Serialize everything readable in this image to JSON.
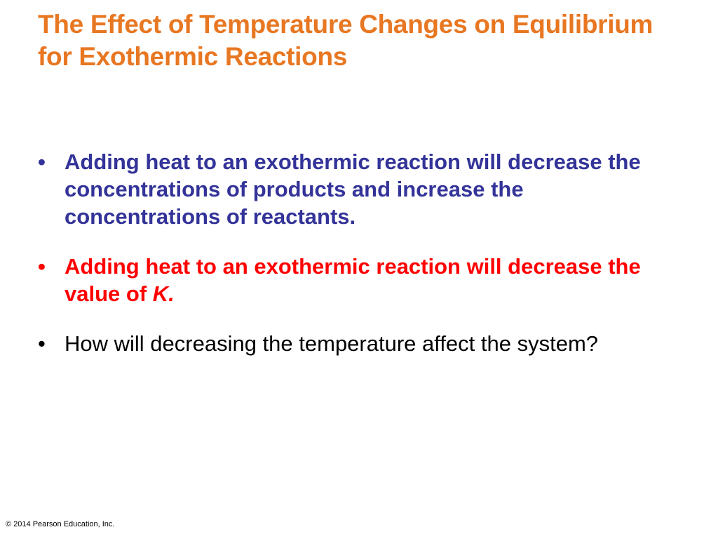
{
  "slide": {
    "title": "The Effect of Temperature Changes on Equilibrium for Exothermic Reactions",
    "bullet_symbol": "•",
    "bullets": [
      {
        "text": "Adding heat to an exothermic reaction will decrease the concentrations of products and increase the concentrations of reactants."
      },
      {
        "text": "Adding heat to an exothermic reaction will decrease the value of ",
        "emphasis": "K."
      },
      {
        "text": "How will decreasing the temperature affect the system?"
      }
    ],
    "footer": "© 2014 Pearson Education, Inc."
  },
  "colors": {
    "title": "#E87722",
    "bullet_blue": "#333399",
    "bullet_red": "#FF0000",
    "bullet_black": "#000000",
    "background": "#FFFFFF"
  }
}
